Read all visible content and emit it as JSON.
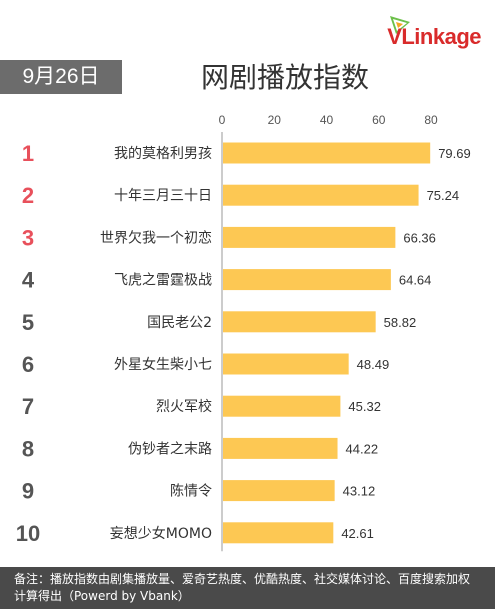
{
  "logo": {
    "text": "VLinkage"
  },
  "date_badge": "9月26日",
  "title": "网剧播放指数",
  "footer_note": "备注：播放指数由剧集播放量、爱奇艺热度、优酷热度、社交媒体讨论、百度搜索加权计算得出（Powerd by Vbank）",
  "colors": {
    "bar": "#FDC853",
    "rank_top": "#E8505B",
    "rank_other": "#555555",
    "axis": "#999999"
  },
  "chart_data": {
    "type": "bar",
    "orientation": "horizontal",
    "ranks": [
      "1",
      "2",
      "3",
      "4",
      "5",
      "6",
      "7",
      "8",
      "9",
      "10"
    ],
    "categories": [
      "我的莫格利男孩",
      "十年三月三十日",
      "世界欠我一个初恋",
      "飞虎之雷霆极战",
      "国民老公2",
      "外星女生柴小七",
      "烈火军校",
      "伪钞者之末路",
      "陈情令",
      "妄想少女MOMO"
    ],
    "values": [
      79.69,
      75.24,
      66.36,
      64.64,
      58.82,
      48.49,
      45.32,
      44.22,
      43.12,
      42.61
    ],
    "x_ticks": [
      0,
      20,
      40,
      60,
      80
    ],
    "xlim": [
      0,
      80
    ],
    "grid": false
  }
}
